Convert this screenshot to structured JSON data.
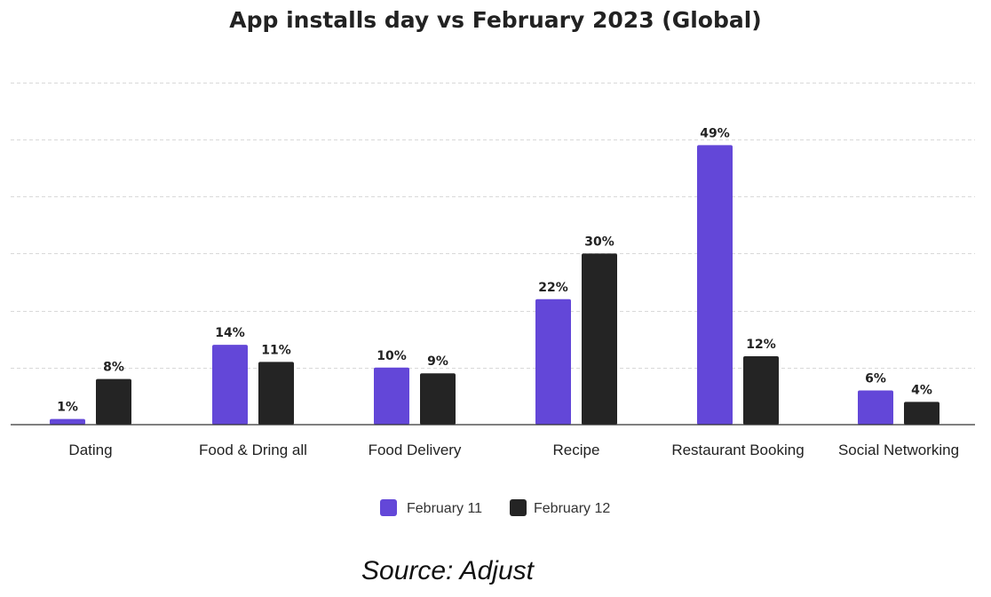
{
  "chart_data": {
    "type": "bar",
    "title": "App installs day vs February 2023 (Global)",
    "categories": [
      "Dating",
      "Food & Dring all",
      "Food Delivery",
      "Recipe",
      "Restaurant Booking",
      "Social Networking"
    ],
    "series": [
      {
        "name": "February 11",
        "color": "#6347d8",
        "values": [
          1,
          14,
          10,
          22,
          49,
          6
        ],
        "labels": [
          "1%",
          "14%",
          "10%",
          "22%",
          "49%",
          "6%"
        ]
      },
      {
        "name": "February 12",
        "color": "#242424",
        "values": [
          8,
          11,
          9,
          30,
          12,
          4
        ],
        "labels": [
          "8%",
          "11%",
          "9%",
          "30%",
          "12%",
          "4%"
        ]
      }
    ],
    "xlabel": "",
    "ylabel": "",
    "ylim": [
      0,
      60
    ],
    "grid": true,
    "legend_position": "bottom-center",
    "source": "Source: Adjust"
  }
}
